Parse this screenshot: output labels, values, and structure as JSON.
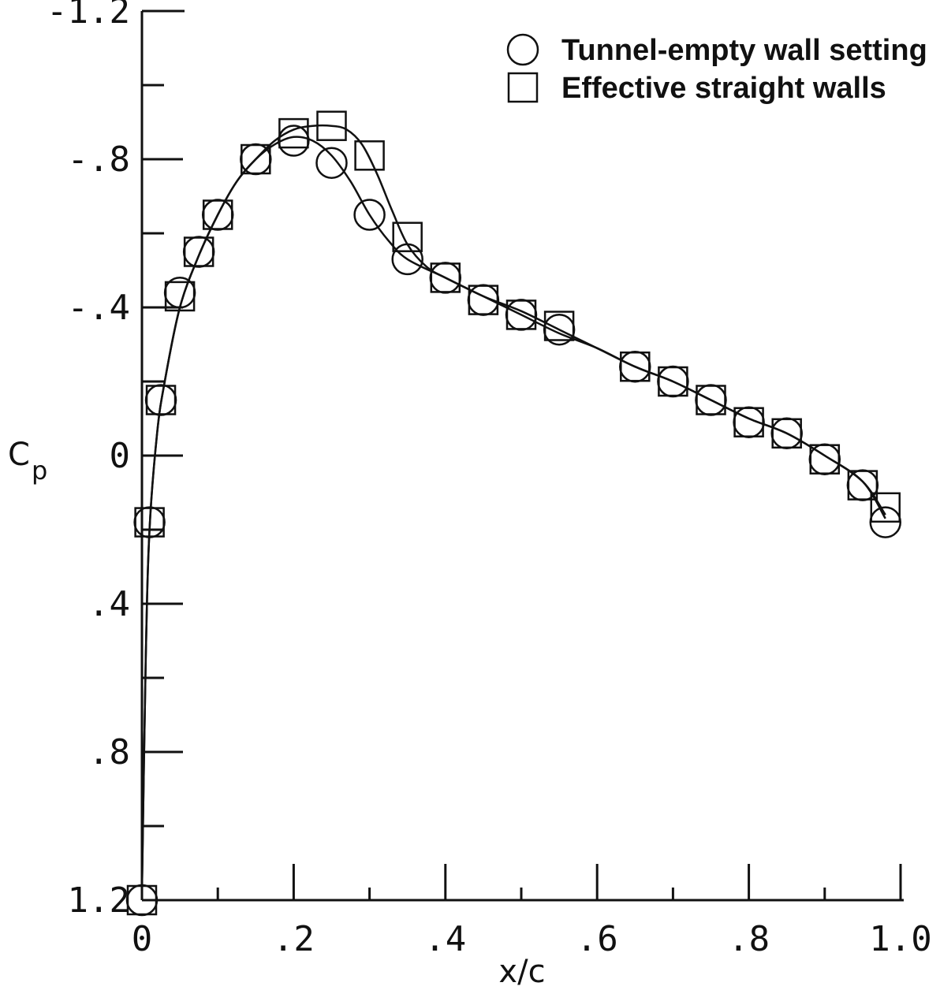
{
  "chart_data": {
    "type": "scatter",
    "xlabel": "x/c",
    "ylabel": "C",
    "ylabel_subscript": "p",
    "xlim": [
      0,
      1.0
    ],
    "ylim": [
      1.2,
      -1.2
    ],
    "y_inverted": true,
    "grid": false,
    "legend_position": "top-right",
    "x_tick_labels": [
      {
        "value": 0,
        "label": "0"
      },
      {
        "value": 0.2,
        "label": ".2"
      },
      {
        "value": 0.4,
        "label": ".4"
      },
      {
        "value": 0.6,
        "label": ".6"
      },
      {
        "value": 0.8,
        "label": ".8"
      },
      {
        "value": 1.0,
        "label": "1.0"
      }
    ],
    "x_minor_ticks": [
      0.1,
      0.3,
      0.5,
      0.7,
      0.9
    ],
    "y_tick_labels": [
      {
        "value": -1.2,
        "label": "-1.2"
      },
      {
        "value": -0.8,
        "label": "-.8"
      },
      {
        "value": -0.4,
        "label": "-.4"
      },
      {
        "value": 0,
        "label": "0"
      },
      {
        "value": 0.4,
        "label": ".4"
      },
      {
        "value": 0.8,
        "label": ".8"
      },
      {
        "value": 1.2,
        "label": "1.2"
      }
    ],
    "y_minor_ticks": [
      -1.0,
      -0.6,
      -0.2,
      0.2,
      0.6,
      1.0
    ],
    "series": [
      {
        "name": "Tunnel-empty wall setting",
        "marker": "circle",
        "x": [
          0.0,
          0.01,
          0.025,
          0.05,
          0.075,
          0.1,
          0.15,
          0.2,
          0.25,
          0.3,
          0.35,
          0.4,
          0.45,
          0.5,
          0.55,
          0.65,
          0.7,
          0.75,
          0.8,
          0.85,
          0.9,
          0.95,
          0.98
        ],
        "y": [
          1.2,
          0.18,
          -0.15,
          -0.44,
          -0.55,
          -0.65,
          -0.8,
          -0.85,
          -0.79,
          -0.65,
          -0.53,
          -0.48,
          -0.42,
          -0.38,
          -0.34,
          -0.24,
          -0.2,
          -0.15,
          -0.09,
          -0.06,
          0.01,
          0.08,
          0.18
        ]
      },
      {
        "name": "Effective straight walls",
        "marker": "square",
        "x": [
          0.0,
          0.01,
          0.025,
          0.05,
          0.075,
          0.1,
          0.15,
          0.2,
          0.25,
          0.3,
          0.35,
          0.4,
          0.45,
          0.5,
          0.55,
          0.65,
          0.7,
          0.75,
          0.8,
          0.85,
          0.9,
          0.95,
          0.98
        ],
        "y": [
          1.2,
          0.18,
          -0.15,
          -0.43,
          -0.55,
          -0.65,
          -0.8,
          -0.87,
          -0.89,
          -0.81,
          -0.59,
          -0.48,
          -0.42,
          -0.38,
          -0.35,
          -0.24,
          -0.2,
          -0.15,
          -0.09,
          -0.06,
          0.01,
          0.08,
          0.14
        ]
      }
    ],
    "curves": [
      {
        "x": [
          0.0,
          0.005,
          0.01,
          0.02,
          0.03,
          0.05,
          0.075,
          0.1,
          0.125,
          0.15,
          0.175,
          0.2,
          0.225,
          0.25,
          0.275,
          0.3,
          0.325,
          0.35,
          0.4,
          0.45,
          0.5,
          0.55,
          0.6,
          0.65,
          0.7,
          0.75,
          0.8,
          0.85,
          0.9,
          0.95,
          0.98
        ],
        "y": [
          1.18,
          0.55,
          0.2,
          -0.06,
          -0.2,
          -0.4,
          -0.54,
          -0.65,
          -0.74,
          -0.8,
          -0.84,
          -0.86,
          -0.85,
          -0.81,
          -0.74,
          -0.65,
          -0.58,
          -0.53,
          -0.48,
          -0.43,
          -0.39,
          -0.34,
          -0.29,
          -0.24,
          -0.2,
          -0.15,
          -0.1,
          -0.06,
          0.0,
          0.07,
          0.17
        ]
      },
      {
        "x": [
          0.0,
          0.005,
          0.01,
          0.02,
          0.03,
          0.05,
          0.075,
          0.1,
          0.125,
          0.15,
          0.175,
          0.2,
          0.225,
          0.25,
          0.27,
          0.29,
          0.31,
          0.33,
          0.35,
          0.375,
          0.4,
          0.45,
          0.5,
          0.55,
          0.6,
          0.65,
          0.7,
          0.75,
          0.8,
          0.85,
          0.9,
          0.95,
          0.98
        ],
        "y": [
          1.18,
          0.55,
          0.2,
          -0.06,
          -0.2,
          -0.4,
          -0.54,
          -0.65,
          -0.74,
          -0.8,
          -0.85,
          -0.88,
          -0.89,
          -0.89,
          -0.88,
          -0.84,
          -0.76,
          -0.66,
          -0.57,
          -0.51,
          -0.48,
          -0.43,
          -0.38,
          -0.33,
          -0.29,
          -0.24,
          -0.2,
          -0.15,
          -0.1,
          -0.06,
          0.0,
          0.07,
          0.16
        ]
      }
    ]
  }
}
